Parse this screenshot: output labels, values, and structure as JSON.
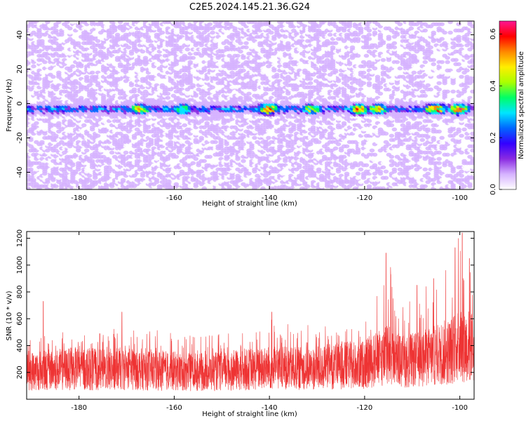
{
  "title": "C2E5.2024.145.21.36.G24",
  "chart_data": [
    {
      "type": "heatmap",
      "xlabel": "Height of straight line (km)",
      "ylabel": "Frequency (Hz)",
      "xlim": [
        -191,
        -97
      ],
      "ylim": [
        -50,
        48
      ],
      "xticks": [
        -180,
        -160,
        -140,
        -120,
        -100
      ],
      "yticks": [
        -40,
        -20,
        0,
        20,
        40
      ],
      "colorbar": {
        "label": "Normalized spectral amplitude",
        "range": [
          0.0,
          0.65
        ],
        "ticks": [
          0.0,
          0.2,
          0.4,
          0.6
        ],
        "tick_labels": [
          "0.0",
          "0.2",
          "0.4",
          "0.6"
        ],
        "colors": [
          "#ffffff",
          "#d6b3ff",
          "#8a2be2",
          "#3300ff",
          "#0066ff",
          "#00e5ff",
          "#00ff66",
          "#aaff00",
          "#ffee00",
          "#ff8800",
          "#ff0000",
          "#ff1493"
        ]
      },
      "band": {
        "center_frequency_hz": -3,
        "peaks": [
          {
            "x": -167,
            "amp": 0.45
          },
          {
            "x": -158,
            "amp": 0.4
          },
          {
            "x": -140,
            "amp": 0.55
          },
          {
            "x": -131,
            "amp": 0.4
          },
          {
            "x": -121,
            "amp": 0.5
          },
          {
            "x": -117,
            "amp": 0.45
          },
          {
            "x": -105,
            "amp": 0.55
          },
          {
            "x": -100,
            "amp": 0.55
          }
        ]
      }
    },
    {
      "type": "line",
      "xlabel": "Height of straight line (km)",
      "ylabel": "SNR (10 * v/v)",
      "xlim": [
        -191,
        -97
      ],
      "ylim": [
        0,
        1250
      ],
      "xticks": [
        -180,
        -160,
        -140,
        -120,
        -100
      ],
      "yticks": [
        200,
        400,
        600,
        800,
        1000,
        1200
      ],
      "color": "#ee3333",
      "envelope": [
        {
          "x": -191,
          "base": 210,
          "peak": 480
        },
        {
          "x": -185,
          "base": 220,
          "peak": 520
        },
        {
          "x": -180,
          "base": 230,
          "peak": 470
        },
        {
          "x": -175,
          "base": 220,
          "peak": 500
        },
        {
          "x": -170,
          "base": 230,
          "peak": 560
        },
        {
          "x": -165,
          "base": 220,
          "peak": 520
        },
        {
          "x": -160,
          "base": 210,
          "peak": 500
        },
        {
          "x": -155,
          "base": 200,
          "peak": 470
        },
        {
          "x": -150,
          "base": 210,
          "peak": 510
        },
        {
          "x": -145,
          "base": 220,
          "peak": 520
        },
        {
          "x": -140,
          "base": 230,
          "peak": 650
        },
        {
          "x": -135,
          "base": 230,
          "peak": 540
        },
        {
          "x": -130,
          "base": 230,
          "peak": 560
        },
        {
          "x": -125,
          "base": 250,
          "peak": 520
        },
        {
          "x": -120,
          "base": 260,
          "peak": 560
        },
        {
          "x": -117,
          "base": 300,
          "peak": 820
        },
        {
          "x": -115,
          "base": 330,
          "peak": 1080
        },
        {
          "x": -112,
          "base": 280,
          "peak": 700
        },
        {
          "x": -108,
          "base": 300,
          "peak": 850
        },
        {
          "x": -105,
          "base": 330,
          "peak": 920
        },
        {
          "x": -102,
          "base": 360,
          "peak": 1050
        },
        {
          "x": -100,
          "base": 420,
          "peak": 1240
        },
        {
          "x": -97,
          "base": 380,
          "peak": 1000
        }
      ],
      "spikes": [
        {
          "x": -187.5,
          "y": 730
        },
        {
          "x": -171,
          "y": 650
        },
        {
          "x": -139.5,
          "y": 650
        },
        {
          "x": -115.5,
          "y": 1090
        },
        {
          "x": -114.5,
          "y": 930
        },
        {
          "x": -109,
          "y": 850
        },
        {
          "x": -105.5,
          "y": 900
        },
        {
          "x": -101,
          "y": 1130
        },
        {
          "x": -99.5,
          "y": 1240
        },
        {
          "x": -98,
          "y": 1050
        }
      ]
    }
  ]
}
